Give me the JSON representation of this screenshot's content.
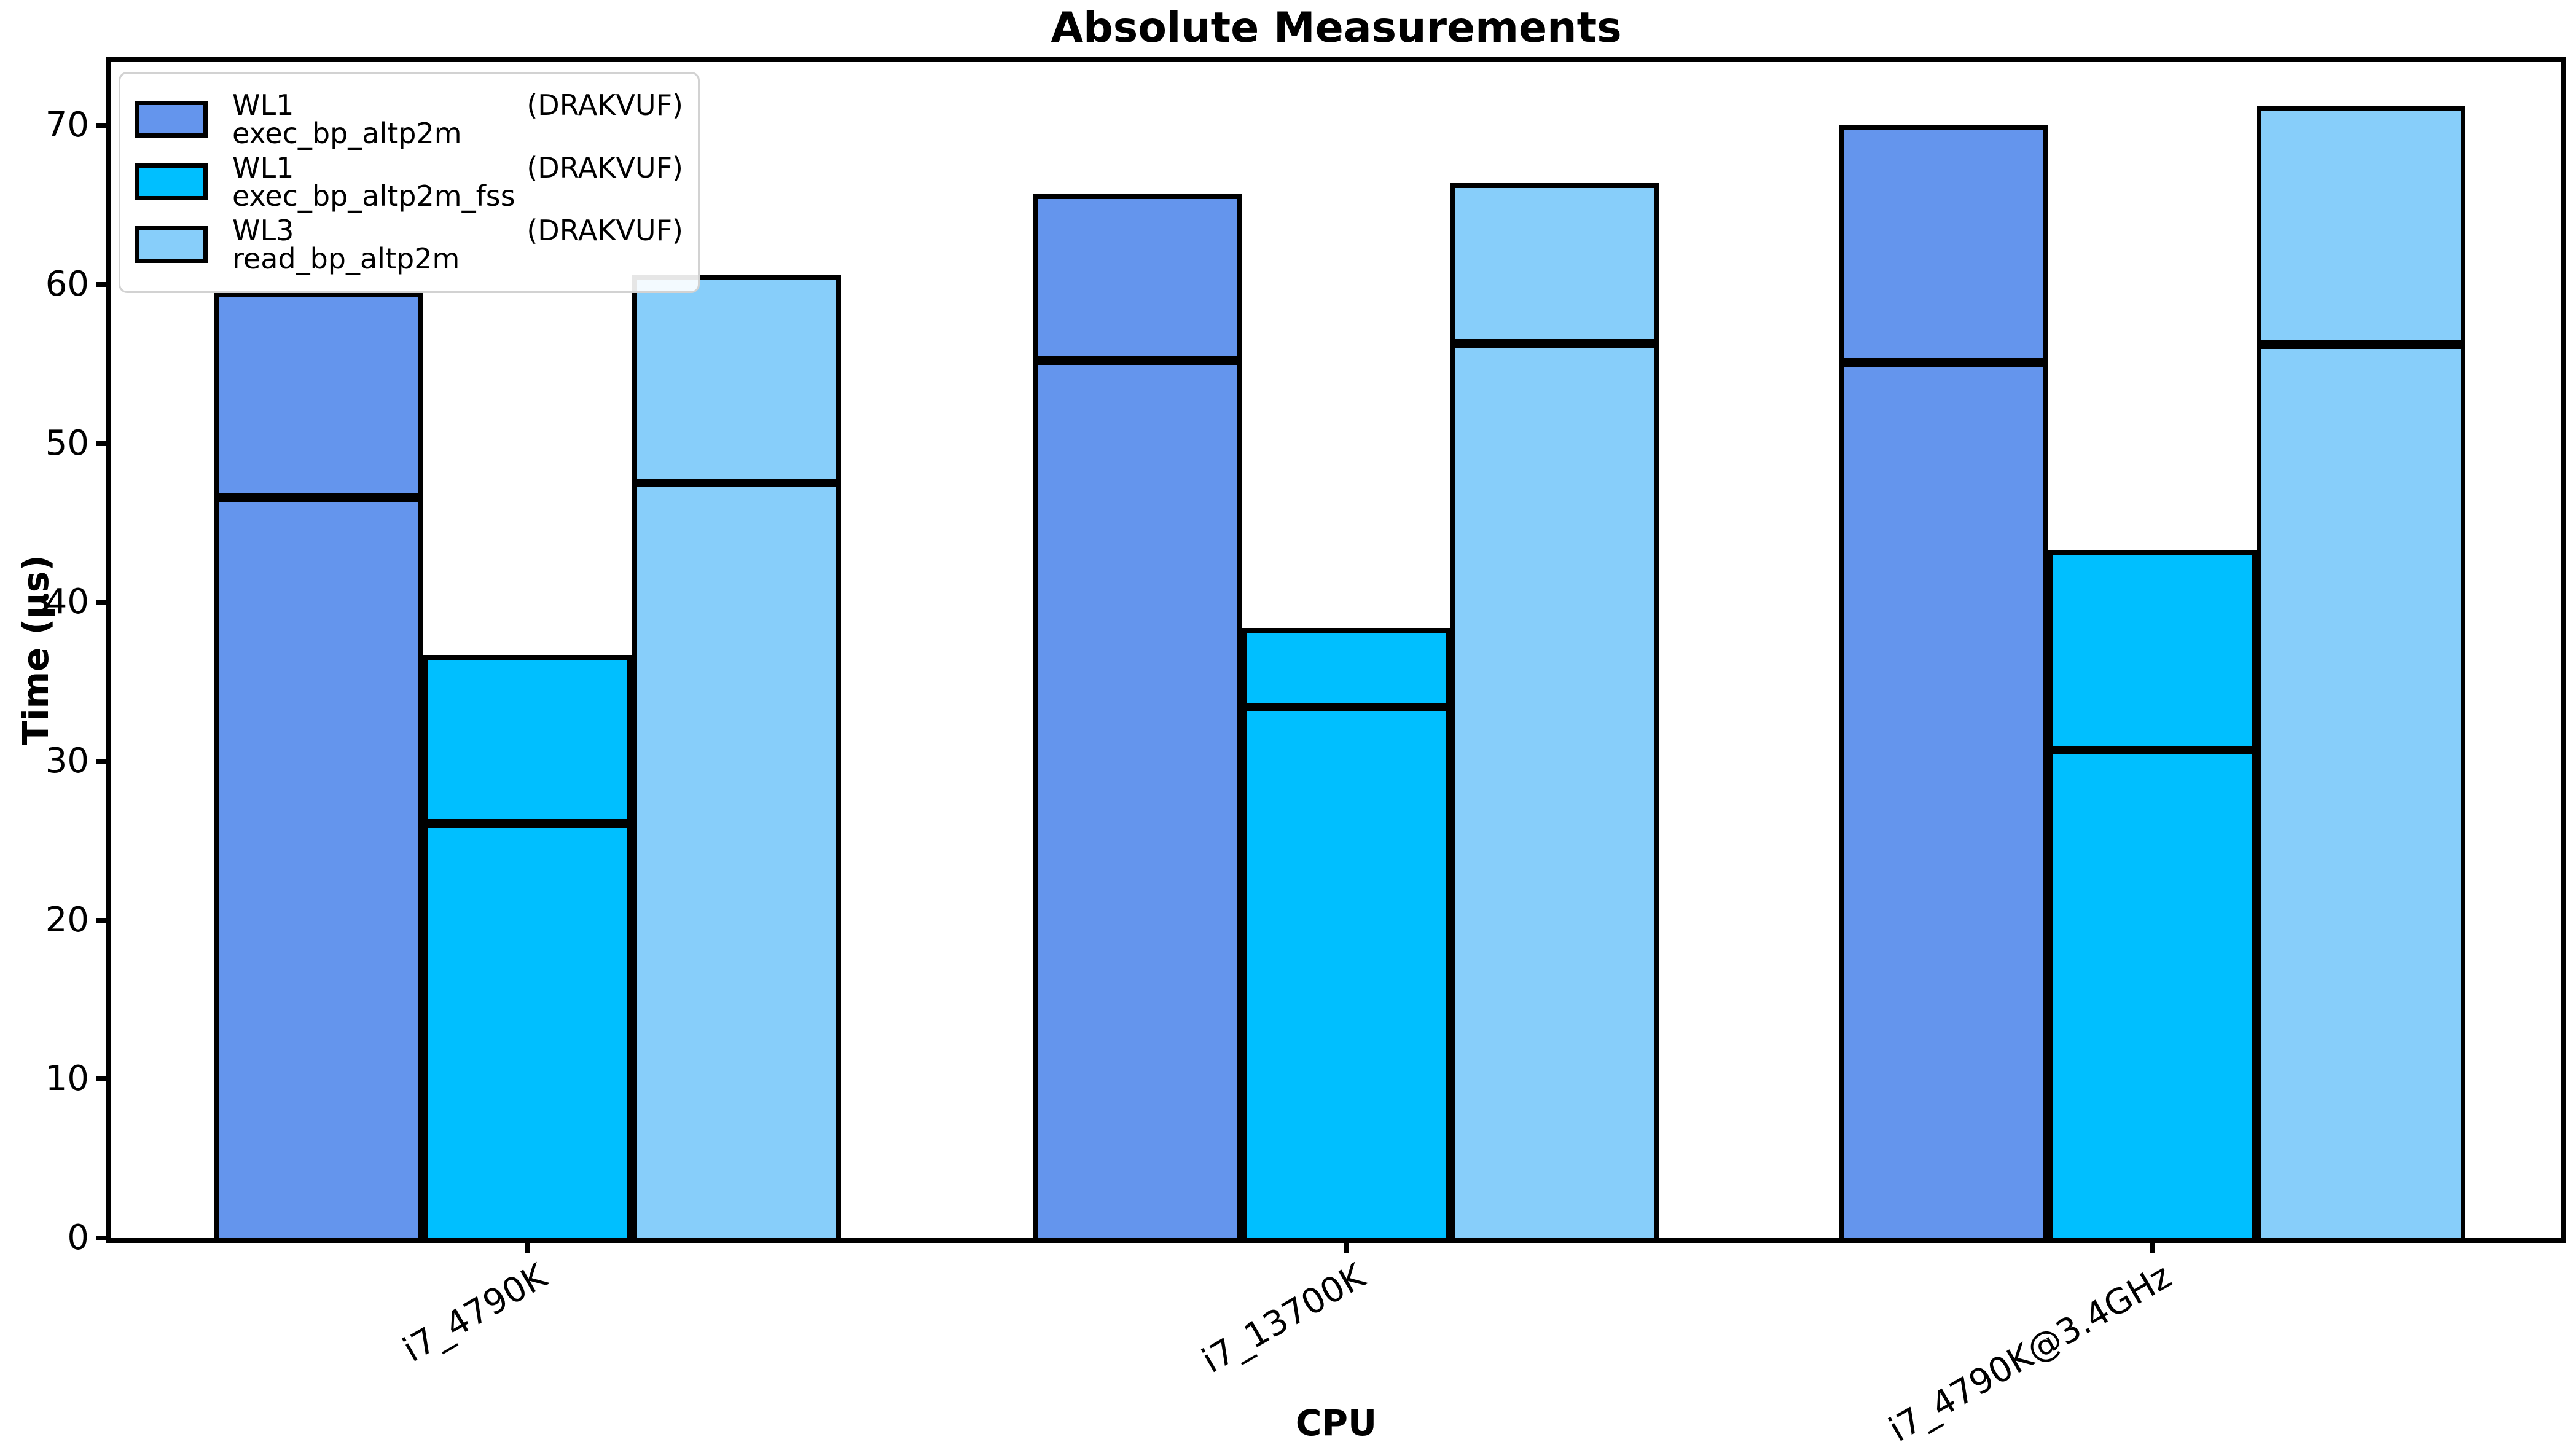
{
  "chart_data": {
    "type": "bar",
    "title": "Absolute Measurements",
    "xlabel": "CPU",
    "ylabel": "Time (μs)",
    "ylim": [
      0,
      74
    ],
    "yticks": [
      0,
      10,
      20,
      30,
      40,
      50,
      60,
      70
    ],
    "grid": false,
    "legend_position": "upper left",
    "categories": [
      "i7_4790K",
      "i7_13700K",
      "i7_4790K@3.4GHz"
    ],
    "bar_edge_color": "#000000",
    "marker_line_meaning": "black horizontal line drawn inside each bar (median marker)",
    "series": [
      {
        "name": "WL1 exec_bp_altp2m",
        "suffix": "(DRAKVUF)",
        "color": "#6495ed",
        "bar_tops": [
          59.5,
          65.7,
          70.0
        ],
        "median_lines": [
          46.6,
          55.2,
          55.1
        ]
      },
      {
        "name": "WL1 exec_bp_altp2m_fss",
        "suffix": "(DRAKVUF)",
        "color": "#00bfff",
        "bar_tops": [
          36.7,
          38.4,
          43.3
        ],
        "median_lines": [
          26.1,
          33.4,
          30.7
        ]
      },
      {
        "name": "WL3 read_bp_altp2m",
        "suffix": "(DRAKVUF)",
        "color": "#87cefa",
        "bar_tops": [
          60.6,
          66.4,
          71.2
        ],
        "median_lines": [
          47.5,
          56.3,
          56.2
        ]
      }
    ]
  }
}
